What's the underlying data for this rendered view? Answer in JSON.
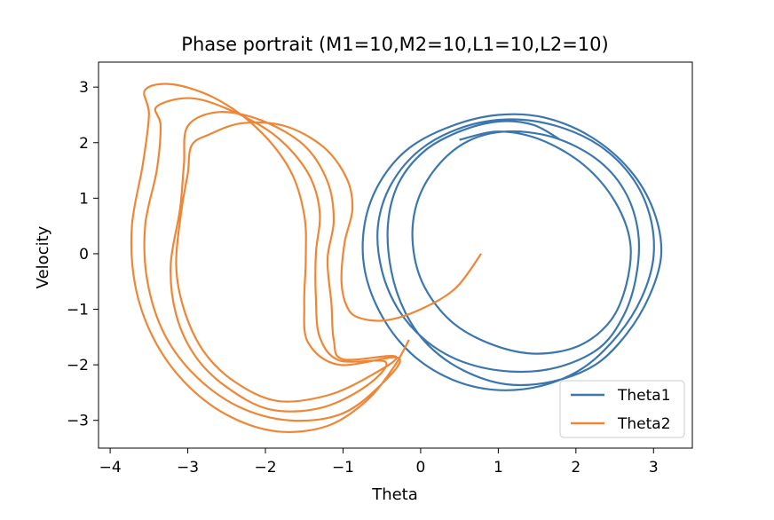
{
  "chart_data": {
    "type": "line",
    "title": "Phase portrait (M1=10,M2=10,L1=10,L2=10)",
    "xlabel": "Theta",
    "ylabel": "Velocity",
    "xlim": [
      -4.15,
      3.5
    ],
    "ylim": [
      -3.5,
      3.45
    ],
    "xticks": [
      -4,
      -3,
      -2,
      -1,
      0,
      1,
      2,
      3
    ],
    "xtick_labels": [
      "−4",
      "−3",
      "−2",
      "−1",
      "0",
      "1",
      "2",
      "3"
    ],
    "yticks": [
      3,
      2,
      1,
      0,
      -1,
      -2,
      -3
    ],
    "ytick_labels": [
      "3",
      "2",
      "1",
      "0",
      "−1",
      "−2",
      "−3"
    ],
    "grid": false,
    "legend_position": "lower right",
    "series": [
      {
        "name": "Theta1",
        "color": "#3b76af",
        "points": [
          [
            1.8,
            2.05
          ],
          [
            1.45,
            2.32
          ],
          [
            1.0,
            2.38
          ],
          [
            0.5,
            2.2
          ],
          [
            0.05,
            1.85
          ],
          [
            -0.28,
            1.28
          ],
          [
            -0.42,
            0.55
          ],
          [
            -0.38,
            -0.3
          ],
          [
            -0.2,
            -1.05
          ],
          [
            0.1,
            -1.65
          ],
          [
            0.55,
            -2.1
          ],
          [
            1.1,
            -2.35
          ],
          [
            1.7,
            -2.3
          ],
          [
            2.25,
            -2.0
          ],
          [
            2.65,
            -1.45
          ],
          [
            2.95,
            -0.75
          ],
          [
            3.1,
            0.0
          ],
          [
            3.0,
            0.78
          ],
          [
            2.7,
            1.5
          ],
          [
            2.2,
            2.1
          ],
          [
            1.6,
            2.45
          ],
          [
            1.0,
            2.5
          ],
          [
            0.4,
            2.3
          ],
          [
            -0.15,
            1.9
          ],
          [
            -0.52,
            1.3
          ],
          [
            -0.72,
            0.55
          ],
          [
            -0.72,
            -0.3
          ],
          [
            -0.5,
            -1.12
          ],
          [
            -0.12,
            -1.8
          ],
          [
            0.38,
            -2.25
          ],
          [
            0.95,
            -2.45
          ],
          [
            1.55,
            -2.38
          ],
          [
            2.1,
            -2.05
          ],
          [
            2.55,
            -1.45
          ],
          [
            2.85,
            -0.78
          ],
          [
            3.0,
            -0.05
          ],
          [
            2.95,
            0.7
          ],
          [
            2.72,
            1.38
          ],
          [
            2.3,
            1.95
          ],
          [
            1.75,
            2.3
          ],
          [
            1.15,
            2.42
          ],
          [
            0.55,
            2.28
          ],
          [
            0.0,
            1.88
          ],
          [
            -0.38,
            1.25
          ],
          [
            -0.55,
            0.5
          ],
          [
            -0.5,
            -0.3
          ],
          [
            -0.28,
            -1.02
          ],
          [
            0.08,
            -1.58
          ],
          [
            0.55,
            -1.95
          ],
          [
            1.15,
            -2.12
          ],
          [
            1.75,
            -2.05
          ],
          [
            2.3,
            -1.7
          ],
          [
            2.62,
            -1.1
          ],
          [
            2.78,
            -0.38
          ],
          [
            2.8,
            0.4
          ],
          [
            2.62,
            1.15
          ],
          [
            2.25,
            1.72
          ],
          [
            1.7,
            2.1
          ],
          [
            1.1,
            2.2
          ],
          [
            0.6,
            2.02
          ],
          [
            0.2,
            1.55
          ],
          [
            -0.05,
            0.9
          ],
          [
            -0.1,
            0.15
          ],
          [
            0.05,
            -0.6
          ],
          [
            0.42,
            -1.25
          ],
          [
            0.95,
            -1.65
          ],
          [
            1.5,
            -1.8
          ],
          [
            2.05,
            -1.65
          ],
          [
            2.45,
            -1.2
          ],
          [
            2.65,
            -0.55
          ],
          [
            2.7,
            0.2
          ],
          [
            2.5,
            0.95
          ],
          [
            2.1,
            1.6
          ],
          [
            1.55,
            2.05
          ],
          [
            1.0,
            2.2
          ],
          [
            0.5,
            2.05
          ]
        ]
      },
      {
        "name": "Theta2",
        "color": "#ef8636",
        "points": [
          [
            0.78,
            0.0
          ],
          [
            0.45,
            -0.62
          ],
          [
            0.0,
            -1.0
          ],
          [
            -0.45,
            -1.2
          ],
          [
            -0.8,
            -1.15
          ],
          [
            -0.95,
            -0.95
          ],
          [
            -1.02,
            -0.5
          ],
          [
            -0.98,
            0.2
          ],
          [
            -0.88,
            0.8
          ],
          [
            -0.95,
            1.35
          ],
          [
            -1.25,
            1.92
          ],
          [
            -1.75,
            2.3
          ],
          [
            -2.3,
            2.35
          ],
          [
            -2.72,
            2.15
          ],
          [
            -2.95,
            1.95
          ],
          [
            -3.0,
            1.45
          ],
          [
            -3.08,
            0.8
          ],
          [
            -3.15,
            -0.2
          ],
          [
            -3.05,
            -1.0
          ],
          [
            -2.8,
            -1.75
          ],
          [
            -2.4,
            -2.3
          ],
          [
            -1.85,
            -2.65
          ],
          [
            -1.2,
            -2.55
          ],
          [
            -0.65,
            -2.2
          ],
          [
            -0.32,
            -1.85
          ],
          [
            -1.0,
            -1.9
          ],
          [
            -1.12,
            -1.55
          ],
          [
            -1.15,
            -0.9
          ],
          [
            -1.2,
            -0.1
          ],
          [
            -1.12,
            0.6
          ],
          [
            -1.2,
            1.3
          ],
          [
            -1.5,
            1.95
          ],
          [
            -2.05,
            2.4
          ],
          [
            -2.6,
            2.55
          ],
          [
            -3.0,
            2.3
          ],
          [
            -3.05,
            1.6
          ],
          [
            -3.1,
            0.8
          ],
          [
            -3.22,
            -0.2
          ],
          [
            -3.15,
            -1.1
          ],
          [
            -2.9,
            -1.85
          ],
          [
            -2.5,
            -2.4
          ],
          [
            -1.95,
            -2.8
          ],
          [
            -1.3,
            -2.78
          ],
          [
            -0.72,
            -2.4
          ],
          [
            -0.45,
            -1.95
          ],
          [
            -1.05,
            -1.92
          ],
          [
            -1.3,
            -1.5
          ],
          [
            -1.35,
            -0.8
          ],
          [
            -1.35,
            0.0
          ],
          [
            -1.3,
            0.75
          ],
          [
            -1.45,
            1.45
          ],
          [
            -1.85,
            2.1
          ],
          [
            -2.4,
            2.55
          ],
          [
            -2.95,
            2.8
          ],
          [
            -3.4,
            2.65
          ],
          [
            -3.35,
            2.3
          ],
          [
            -3.4,
            1.5
          ],
          [
            -3.55,
            0.5
          ],
          [
            -3.52,
            -0.5
          ],
          [
            -3.3,
            -1.45
          ],
          [
            -2.9,
            -2.2
          ],
          [
            -2.35,
            -2.75
          ],
          [
            -1.7,
            -3.0
          ],
          [
            -1.05,
            -2.9
          ],
          [
            -0.58,
            -2.45
          ],
          [
            -0.28,
            -1.88
          ],
          [
            -1.05,
            -2.0
          ],
          [
            -1.45,
            -1.6
          ],
          [
            -1.5,
            -0.9
          ],
          [
            -1.48,
            -0.1
          ],
          [
            -1.5,
            0.7
          ],
          [
            -1.68,
            1.5
          ],
          [
            -2.1,
            2.25
          ],
          [
            -2.65,
            2.8
          ],
          [
            -3.2,
            3.05
          ],
          [
            -3.55,
            2.95
          ],
          [
            -3.5,
            2.5
          ],
          [
            -3.58,
            1.6
          ],
          [
            -3.72,
            0.5
          ],
          [
            -3.68,
            -0.55
          ],
          [
            -3.45,
            -1.5
          ],
          [
            -3.05,
            -2.3
          ],
          [
            -2.5,
            -2.9
          ],
          [
            -1.85,
            -3.2
          ],
          [
            -1.2,
            -3.1
          ],
          [
            -0.7,
            -2.65
          ],
          [
            -0.35,
            -2.05
          ],
          [
            -0.15,
            -1.55
          ]
        ]
      }
    ]
  }
}
